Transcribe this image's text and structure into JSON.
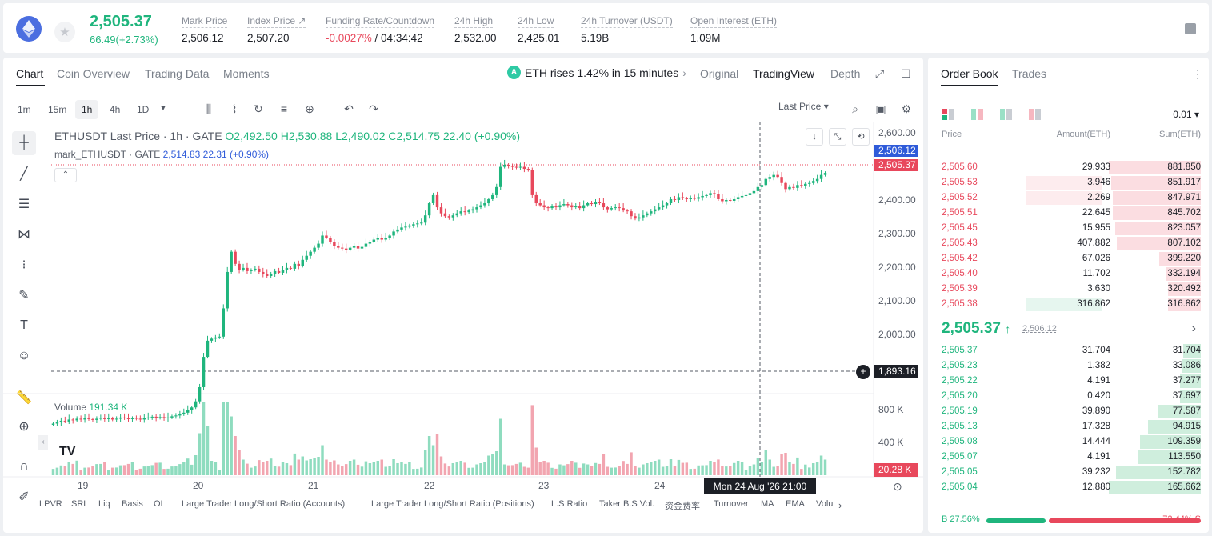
{
  "header": {
    "last_price": "2,505.37",
    "change": "66.49(+2.73%)",
    "stats": [
      {
        "label": "Mark Price",
        "value": "2,506.12"
      },
      {
        "label": "Index Price ↗",
        "value": "2,507.20"
      },
      {
        "label": "Funding Rate/Countdown",
        "value_red": "-0.0027%",
        "value": " / 04:34:42"
      },
      {
        "label": "24h High",
        "value": "2,532.00"
      },
      {
        "label": "24h Low",
        "value": "2,425.01"
      },
      {
        "label": "24h Turnover (USDT)",
        "value": "5.19B"
      },
      {
        "label": "Open Interest (ETH)",
        "value": "1.09M"
      }
    ]
  },
  "chart_panel": {
    "tabs": [
      "Chart",
      "Coin Overview",
      "Trading Data",
      "Moments"
    ],
    "banner": "ETH rises 1.42% in 15 minutes",
    "views": [
      "Original",
      "TradingView",
      "Depth"
    ],
    "timeframes": [
      "1m",
      "15m",
      "1h",
      "4h",
      "1D"
    ],
    "price_type": "Last Price",
    "legend_title": "ETHUSDT Last Price · 1h · GATE",
    "legend_o": "O2,492.50",
    "legend_h": "H2,530.88",
    "legend_l": "L2,490.02",
    "legend_c": "C2,514.75",
    "legend_chg": "22.40 (+0.90%)",
    "mark_title": "mark_ETHUSDT · GATE",
    "mark_val": "2,514.83",
    "mark_chg": "22.31 (+0.90%)",
    "volume_label": "Volume",
    "volume_val": "191.34 K",
    "y_ticks": [
      "2,600.00",
      "2,500.00",
      "2,400.00",
      "2,300.00",
      "2,200.00",
      "2,100.00",
      "2,000.00"
    ],
    "vol_ticks": [
      "800 K",
      "400 K"
    ],
    "price_tag_blue": "2,506.12",
    "price_tag_red": "2,505.37",
    "crosshair_price": "1,893.16",
    "vol_tag": "20.28 K",
    "x_ticks": [
      "19",
      "20",
      "21",
      "22",
      "23",
      "24"
    ],
    "time_tag": "Mon 24 Aug '26   21:00",
    "indicators": [
      "LPVR",
      "SRL",
      "Liq",
      "Basis",
      "OI",
      "Large Trader Long/Short Ratio (Accounts)",
      "Large Trader Long/Short Ratio (Positions)",
      "L.S Ratio",
      "Taker B.S Vol.",
      "资金费率",
      "Turnover",
      "MA",
      "EMA",
      "Volu"
    ]
  },
  "chart_data": {
    "type": "candlestick",
    "ylim": [
      1880,
      2620
    ],
    "x_ticks": [
      "19",
      "20",
      "21",
      "22",
      "23",
      "24"
    ],
    "closes": [
      1885,
      1888,
      1892,
      1890,
      1895,
      1893,
      1897,
      1895,
      1898,
      1896,
      1894,
      1897,
      1899,
      1896,
      1898,
      1895,
      1897,
      1900,
      1898,
      1896,
      1899,
      1897,
      1895,
      1898,
      1900,
      1902,
      1899,
      1901,
      1898,
      1900,
      1903,
      1905,
      1908,
      1912,
      1918,
      1925,
      1940,
      1975,
      2050,
      2090,
      2095,
      2098,
      2100,
      2170,
      2260,
      2310,
      2280,
      2265,
      2270,
      2262,
      2265,
      2268,
      2260,
      2255,
      2250,
      2256,
      2262,
      2258,
      2265,
      2270,
      2268,
      2280,
      2275,
      2290,
      2300,
      2310,
      2320,
      2330,
      2350,
      2345,
      2335,
      2325,
      2320,
      2318,
      2315,
      2320,
      2325,
      2318,
      2322,
      2330,
      2335,
      2340,
      2345,
      2340,
      2345,
      2350,
      2360,
      2365,
      2370,
      2372,
      2375,
      2378,
      2380,
      2382,
      2400,
      2430,
      2450,
      2420,
      2405,
      2398,
      2395,
      2400,
      2405,
      2410,
      2408,
      2412,
      2415,
      2420,
      2425,
      2430,
      2440,
      2450,
      2470,
      2520,
      2525,
      2522,
      2520,
      2518,
      2520,
      2515,
      2512,
      2450,
      2430,
      2425,
      2420,
      2418,
      2422,
      2420,
      2425,
      2428,
      2425,
      2420,
      2422,
      2418,
      2425,
      2430,
      2428,
      2432,
      2430,
      2420,
      2415,
      2418,
      2420,
      2418,
      2412,
      2410,
      2398,
      2392,
      2395,
      2400,
      2405,
      2410,
      2415,
      2420,
      2425,
      2430,
      2440,
      2438,
      2445,
      2442,
      2440,
      2443,
      2441,
      2445,
      2448,
      2450,
      2455,
      2452,
      2440,
      2435,
      2438,
      2436,
      2440,
      2445,
      2448,
      2450,
      2455,
      2460,
      2470,
      2475,
      2490,
      2495,
      2500,
      2495,
      2480,
      2465,
      2470,
      2468,
      2475,
      2472,
      2478,
      2480,
      2485,
      2490,
      2500,
      2505
    ]
  },
  "order_book": {
    "tabs": [
      "Order Book",
      "Trades"
    ],
    "precision": "0.01",
    "headers": [
      "Price",
      "Amount(ETH)",
      "Sum(ETH)"
    ],
    "asks": [
      {
        "price": "2,505.60",
        "amount": "29.933",
        "sum": "881.850",
        "a": 0,
        "s": 1.0
      },
      {
        "price": "2,505.53",
        "amount": "3.946",
        "sum": "851.917",
        "a": 0.86,
        "s": 0.97
      },
      {
        "price": "2,505.52",
        "amount": "2.269",
        "sum": "847.971",
        "a": 0.86,
        "s": 0.96
      },
      {
        "price": "2,505.51",
        "amount": "22.645",
        "sum": "845.702",
        "a": 0,
        "s": 0.96
      },
      {
        "price": "2,505.45",
        "amount": "15.955",
        "sum": "823.057",
        "a": 0,
        "s": 0.93
      },
      {
        "price": "2,505.43",
        "amount": "407.882",
        "sum": "807.102",
        "a": 0,
        "s": 0.91
      },
      {
        "price": "2,505.42",
        "amount": "67.026",
        "sum": "399.220",
        "a": 0,
        "s": 0.45
      },
      {
        "price": "2,505.40",
        "amount": "11.702",
        "sum": "332.194",
        "a": 0,
        "s": 0.38
      },
      {
        "price": "2,505.39",
        "amount": "3.630",
        "sum": "320.492",
        "a": 0,
        "s": 0.36
      },
      {
        "price": "2,505.38",
        "amount": "316.862",
        "sum": "316.862",
        "a": 0.86,
        "s": 0.36
      }
    ],
    "mid_price": "2,505.37",
    "mid_arrow": "↑",
    "mark_price": "2,506.12",
    "bids": [
      {
        "price": "2,505.37",
        "amount": "31.704",
        "sum": "31.704",
        "s": 0.19
      },
      {
        "price": "2,505.23",
        "amount": "1.382",
        "sum": "33.086",
        "s": 0.2
      },
      {
        "price": "2,505.22",
        "amount": "4.191",
        "sum": "37.277",
        "s": 0.23
      },
      {
        "price": "2,505.20",
        "amount": "0.420",
        "sum": "37.697",
        "s": 0.23
      },
      {
        "price": "2,505.19",
        "amount": "39.890",
        "sum": "77.587",
        "s": 0.47
      },
      {
        "price": "2,505.13",
        "amount": "17.328",
        "sum": "94.915",
        "s": 0.57
      },
      {
        "price": "2,505.08",
        "amount": "14.444",
        "sum": "109.359",
        "s": 0.66
      },
      {
        "price": "2,505.07",
        "amount": "4.191",
        "sum": "113.550",
        "s": 0.69
      },
      {
        "price": "2,505.05",
        "amount": "39.232",
        "sum": "152.782",
        "s": 0.92
      },
      {
        "price": "2,505.04",
        "amount": "12.880",
        "sum": "165.662",
        "s": 1.0
      }
    ],
    "buy_pct": "B 27.56%",
    "sell_pct": "72.44% S",
    "buy_ratio": 0.2756
  }
}
